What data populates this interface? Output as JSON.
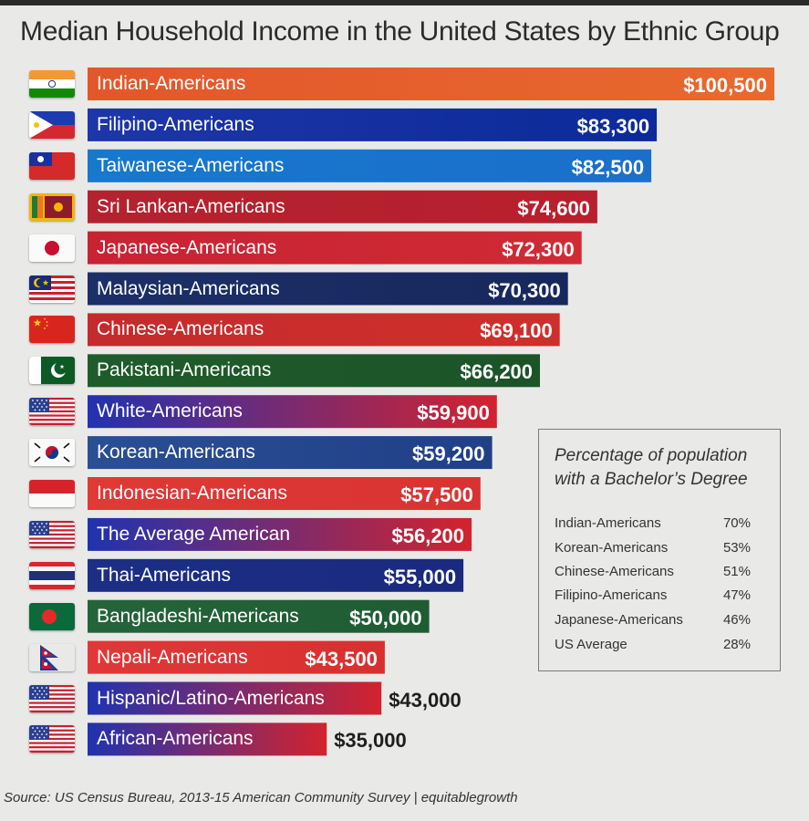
{
  "title": "Median Household Income in the United States  by Ethnic Group",
  "source": "Source: US Census Bureau, 2013-15 American Community Survey | equitablegrowth",
  "chart_data": {
    "type": "bar",
    "orientation": "horizontal",
    "value_unit": "USD",
    "categories": [
      "Indian-Americans",
      "Filipino-Americans",
      "Taiwanese-Americans",
      "Sri Lankan-Americans",
      "Japanese-Americans",
      "Malaysian-Americans",
      "Chinese-Americans",
      "Pakistani-Americans",
      "White-Americans",
      "Korean-Americans",
      "Indonesian-Americans",
      "The Average American",
      "Thai-Americans",
      "Bangladeshi-Americans",
      "Nepali-Americans",
      "Hispanic/Latino-Americans",
      "African-Americans"
    ],
    "values": [
      100500,
      83300,
      82500,
      74600,
      72300,
      70300,
      69100,
      66200,
      59900,
      59200,
      57500,
      56200,
      55000,
      50000,
      43500,
      43000,
      35000
    ],
    "value_labels": [
      "$100,500",
      "$83,300",
      "$82,500",
      "$74,600",
      "$72,300",
      "$70,300",
      "$69,100",
      "$66,200",
      "$59,900",
      "$59,200",
      "$57,500",
      "$56,200",
      "$55,000",
      "$50,000",
      "$43,500",
      "$43,000",
      "$35,000"
    ],
    "bar_colors": [
      [
        "#e2572b",
        "#e8692e"
      ],
      [
        "#1d36a8",
        "#0c2a99"
      ],
      [
        "#1778cc",
        "#1b6fcb"
      ],
      [
        "#b2232f",
        "#b91f2d"
      ],
      [
        "#c82333",
        "#d02a35"
      ],
      [
        "#1c2f66",
        "#17285e"
      ],
      [
        "#c52b2c",
        "#cf2f2c"
      ],
      [
        "#1f5c2b",
        "#1c5428"
      ],
      [
        "#2232b0",
        "#d4222f"
      ],
      [
        "#2a4f95",
        "#203f87"
      ],
      [
        "#df3a36",
        "#d93232"
      ],
      [
        "#1f33b0",
        "#d3232e"
      ],
      [
        "#1c2e85",
        "#1a2a7f"
      ],
      [
        "#25643a",
        "#1f5c34"
      ],
      [
        "#e03838",
        "#d82f2f"
      ],
      [
        "#1f33b0",
        "#d3232e"
      ],
      [
        "#1f33b0",
        "#d3232e"
      ]
    ],
    "flag_icons": [
      "flag-india-icon",
      "flag-philippines-icon",
      "flag-taiwan-icon",
      "flag-sri-lanka-icon",
      "flag-japan-icon",
      "flag-malaysia-icon",
      "flag-china-icon",
      "flag-pakistan-icon",
      "flag-usa-icon",
      "flag-south-korea-icon",
      "flag-indonesia-icon",
      "flag-usa-icon",
      "flag-thailand-icon",
      "flag-bangladesh-icon",
      "flag-nepal-icon",
      "flag-usa-icon",
      "flag-usa-icon"
    ],
    "xlim": [
      0,
      100500
    ],
    "grid": false,
    "legend": "none"
  },
  "inset": {
    "title": "Percentage of population with a Bachelor’s Degree",
    "rows": [
      {
        "name": "Indian-Americans",
        "pct": "70%"
      },
      {
        "name": "Korean-Americans",
        "pct": "53%"
      },
      {
        "name": "Chinese-Americans",
        "pct": "51%"
      },
      {
        "name": "Filipino-Americans",
        "pct": "47%"
      },
      {
        "name": "Japanese-Americans",
        "pct": "46%"
      },
      {
        "name": "US Average",
        "pct": "28%"
      }
    ]
  }
}
